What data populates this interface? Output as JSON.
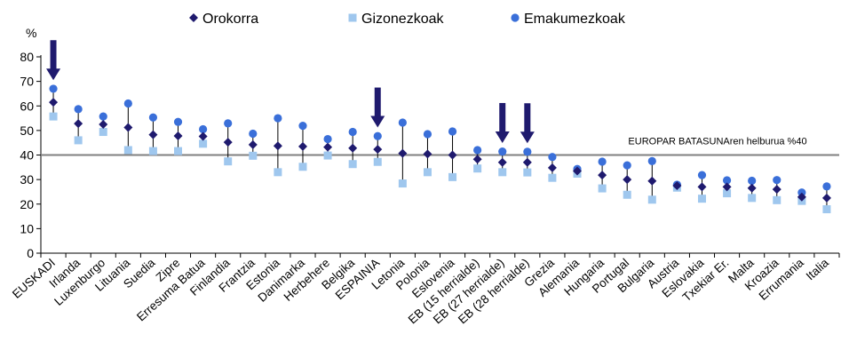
{
  "chart_data": {
    "type": "scatter",
    "ylabel": "%",
    "ylim": [
      0,
      80
    ],
    "yticks": [
      0,
      10,
      20,
      30,
      40,
      50,
      60,
      70,
      80
    ],
    "grid": false,
    "legend_position": "top",
    "categories": [
      "EUSKADI",
      "Irlanda",
      "Luxenburgo",
      "Lituania",
      "Suedia",
      "Zipre",
      "Erresuma Batua",
      "Finlandia",
      "Frantzia",
      "Estonia",
      "Danimarka",
      "Herbehere",
      "Belgika",
      "ESPAINIA",
      "Letonia",
      "Polonia",
      "Eslovenia",
      "EB (15 herrialde)",
      "EB (27 herrialde)",
      "EB (28 herrialde)",
      "Grezia",
      "Alemania",
      "Hungaria",
      "Portugal",
      "Bulgaria",
      "Austria",
      "Eslovakia",
      "Txekiar Er.",
      "Malta",
      "Kroazia",
      "Errumania",
      "Italia"
    ],
    "series": [
      {
        "name": "Orokorra",
        "marker": "diamond",
        "color": "#1f1a6e",
        "values": [
          61.5,
          52.8,
          52.5,
          51.2,
          48.3,
          47.8,
          47.6,
          45.2,
          44.2,
          43.7,
          43.5,
          43.2,
          42.8,
          42.3,
          40.7,
          40.4,
          40.0,
          38.3,
          37.0,
          37.0,
          34.8,
          33.5,
          31.8,
          30.0,
          29.4,
          27.5,
          27.0,
          27.0,
          26.5,
          26.0,
          22.9,
          22.5
        ]
      },
      {
        "name": "Gizonezkoak",
        "marker": "square",
        "color": "#9fc7ee",
        "values": [
          55.7,
          46.0,
          49.4,
          42.0,
          41.6,
          41.6,
          44.6,
          37.4,
          39.7,
          33.0,
          35.2,
          39.8,
          36.3,
          37.2,
          28.4,
          33.0,
          31.0,
          34.5,
          33.0,
          32.9,
          30.7,
          32.4,
          26.4,
          23.8,
          21.8,
          26.7,
          22.2,
          24.4,
          22.5,
          21.6,
          21.3,
          17.9
        ]
      },
      {
        "name": "Emakumezkoak",
        "marker": "circle",
        "color": "#3a6fd9",
        "values": [
          67.0,
          58.7,
          55.7,
          61.0,
          55.3,
          53.5,
          50.5,
          52.9,
          48.7,
          55.0,
          51.9,
          46.5,
          49.4,
          47.7,
          53.2,
          48.5,
          49.6,
          42.0,
          41.4,
          41.3,
          39.2,
          34.3,
          37.3,
          35.8,
          37.5,
          27.9,
          31.8,
          29.7,
          29.5,
          29.8,
          24.7,
          27.2
        ]
      }
    ],
    "reference_line": {
      "value": 40,
      "label": "EUROPAR BATASUNAren helburua  %40"
    },
    "highlighted": [
      "EUSKADI",
      "ESPAINIA",
      "EB (27 herrialde)",
      "EB (28 herrialde)"
    ]
  },
  "colors": {
    "arrow": "#1f1a6e",
    "axis": "#000000",
    "ref_line": "#7f7f7f",
    "stem": "#000000"
  }
}
